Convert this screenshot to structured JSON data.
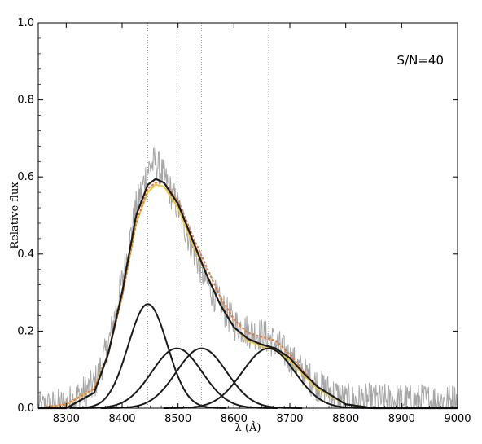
{
  "chart_data": {
    "type": "line",
    "title": "",
    "xlabel": "λ (Å)",
    "ylabel": "Relative flux",
    "xlim": [
      8250,
      9000
    ],
    "ylim": [
      0,
      1.0
    ],
    "xticks": [
      8300,
      8400,
      8500,
      8600,
      8700,
      8800,
      8900,
      9000
    ],
    "yticks": [
      0.0,
      0.2,
      0.4,
      0.6,
      0.8,
      1.0
    ],
    "xtick_labels": [
      "8300",
      "8400",
      "8500",
      "8600",
      "8700",
      "8800",
      "8900",
      "9000"
    ],
    "ytick_labels": [
      "0.0",
      "0.2",
      "0.4",
      "0.6",
      "0.8",
      "1.0"
    ],
    "annotation": "S/N=40",
    "reference_lines": [
      8446,
      8498,
      8542,
      8662
    ],
    "gaussian_components": [
      {
        "center": 8446,
        "amplitude": 0.27,
        "sigma": 35
      },
      {
        "center": 8498,
        "amplitude": 0.155,
        "sigma": 45
      },
      {
        "center": 8542,
        "amplitude": 0.155,
        "sigma": 45
      },
      {
        "center": 8662,
        "amplitude": 0.155,
        "sigma": 47
      }
    ],
    "series": [
      {
        "style": "noisy-spectrum",
        "color": "#a6a6a6",
        "x": [
          8250,
          8300,
          8350,
          8375,
          8400,
          8425,
          8446,
          8460,
          8475,
          8500,
          8525,
          8550,
          8575,
          8600,
          8625,
          8650,
          8675,
          8700,
          8725,
          8750,
          8800,
          8850,
          8900,
          9000
        ],
        "values": [
          0.0,
          0.01,
          0.06,
          0.16,
          0.33,
          0.52,
          0.62,
          0.64,
          0.6,
          0.52,
          0.42,
          0.33,
          0.27,
          0.22,
          0.2,
          0.19,
          0.17,
          0.13,
          0.09,
          0.06,
          0.02,
          0.02,
          0.02,
          0.02
        ]
      },
      {
        "style": "total-fit",
        "color": "#1a1a1a",
        "x": [
          8250,
          8300,
          8350,
          8375,
          8400,
          8425,
          8446,
          8460,
          8475,
          8500,
          8525,
          8550,
          8575,
          8600,
          8625,
          8650,
          8675,
          8700,
          8725,
          8750,
          8800,
          8850,
          8900,
          9000
        ],
        "values": [
          0.0,
          0.0,
          0.04,
          0.14,
          0.3,
          0.5,
          0.58,
          0.595,
          0.585,
          0.53,
          0.44,
          0.35,
          0.27,
          0.21,
          0.18,
          0.165,
          0.155,
          0.13,
          0.09,
          0.055,
          0.01,
          0.0,
          0.0,
          0.0
        ]
      },
      {
        "style": "alt-fit-yellow",
        "color": "#e8c84a",
        "x": [
          8250,
          8300,
          8350,
          8375,
          8400,
          8425,
          8446,
          8460,
          8475,
          8500,
          8525,
          8550,
          8575,
          8600,
          8625,
          8650,
          8675,
          8700,
          8725,
          8750,
          8800,
          8850,
          8900,
          9000
        ],
        "values": [
          0.0,
          0.01,
          0.05,
          0.14,
          0.29,
          0.48,
          0.56,
          0.58,
          0.575,
          0.52,
          0.43,
          0.35,
          0.27,
          0.21,
          0.175,
          0.16,
          0.15,
          0.125,
          0.085,
          0.05,
          0.01,
          0.0,
          0.0,
          0.0
        ]
      },
      {
        "style": "alt-fit-orange",
        "color": "#e07a40",
        "x": [
          8250,
          8300,
          8350,
          8375,
          8400,
          8425,
          8446,
          8460,
          8475,
          8500,
          8525,
          8550,
          8575,
          8600,
          8625,
          8650,
          8675,
          8700,
          8725,
          8750,
          8800,
          8850,
          8900,
          9000
        ],
        "values": [
          0.0,
          0.01,
          0.05,
          0.14,
          0.29,
          0.48,
          0.57,
          0.585,
          0.585,
          0.54,
          0.45,
          0.37,
          0.29,
          0.23,
          0.195,
          0.185,
          0.175,
          0.14,
          0.095,
          0.055,
          0.01,
          0.0,
          0.0,
          0.0
        ]
      }
    ],
    "grid": false,
    "legend": "none"
  }
}
